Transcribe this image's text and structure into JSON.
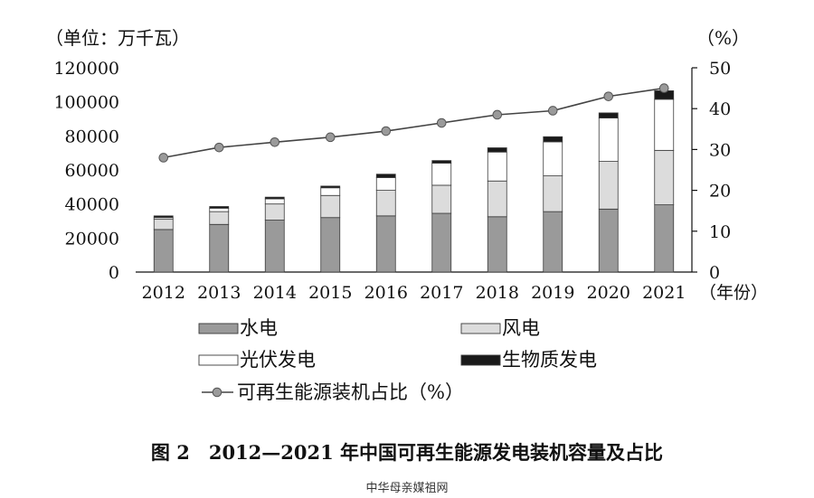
{
  "chart_data": {
    "type": "bar",
    "stacked": true,
    "title": "图 2　2012—2021 年中国可再生能源发电装机容量及占比",
    "y_left_unit": "（单位：万千瓦）",
    "y_right_unit": "（%）",
    "x_unit": "（年份）",
    "categories": [
      "2012",
      "2013",
      "2014",
      "2015",
      "2016",
      "2017",
      "2018",
      "2019",
      "2020",
      "2021"
    ],
    "ylim_left": [
      0,
      120000
    ],
    "yticks_left": [
      "0",
      "20000",
      "40000",
      "60000",
      "80000",
      "100000",
      "120000"
    ],
    "ylim_right": [
      0,
      50
    ],
    "yticks_right": [
      "0",
      "10",
      "20",
      "30",
      "40",
      "50"
    ],
    "series": [
      {
        "name": "水电",
        "color": "#9a9a9a",
        "values": [
          25000,
          28000,
          30500,
          32000,
          33000,
          34500,
          32500,
          35500,
          37000,
          39500
        ]
      },
      {
        "name": "风电",
        "color": "#dcdcdc",
        "values": [
          6000,
          7500,
          9500,
          13000,
          15000,
          16500,
          21000,
          21000,
          28000,
          32000
        ]
      },
      {
        "name": "光伏发电",
        "color": "#ffffff",
        "values": [
          1000,
          2000,
          3000,
          4500,
          7500,
          13000,
          17000,
          20000,
          25500,
          30000
        ]
      },
      {
        "name": "生物质发电",
        "color": "#1a1a1a",
        "values": [
          1000,
          1000,
          1000,
          1000,
          2000,
          1500,
          2500,
          3000,
          3000,
          5000
        ]
      }
    ],
    "line_series": {
      "name": "可再生能源装机占比（%）",
      "color": "#666666",
      "axis": "right",
      "values": [
        28,
        30.5,
        31.8,
        33,
        34.5,
        36.5,
        38.5,
        39.5,
        43,
        45
      ]
    },
    "legend_position": "bottom",
    "grid": false
  },
  "watermark": "中华母亲媒祖网"
}
